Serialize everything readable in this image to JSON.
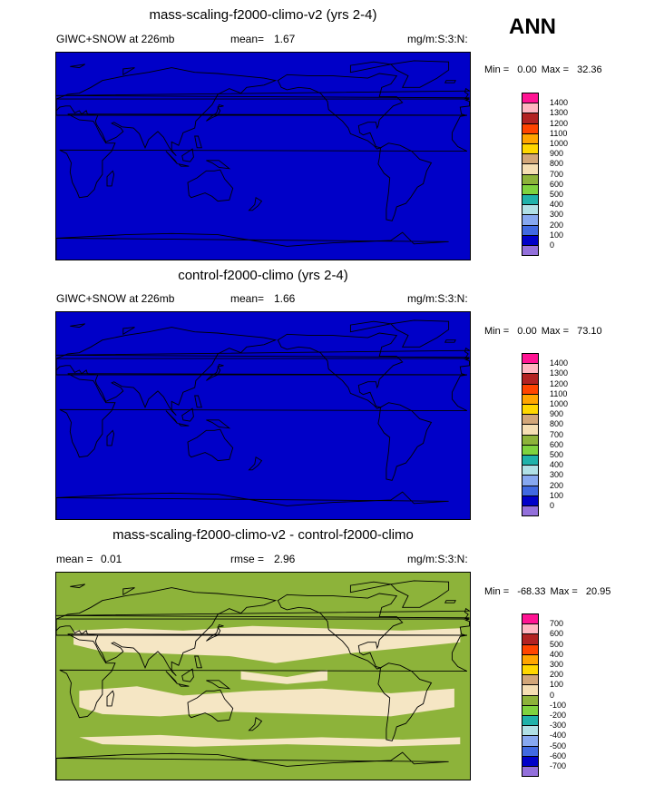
{
  "season_label": "ANN",
  "panels": [
    {
      "title": "mass-scaling-f2000-climo-v2 (yrs 2-4)",
      "left_label": "GIWC+SNOW at 226mb",
      "mean_label": "mean=",
      "mean_value": "1.67",
      "units": "mg/m:S:3:N:",
      "min_label": "Min =",
      "min_value": "0.00",
      "max_label": "Max =",
      "max_value": "32.36",
      "fill_color": "#0000c8",
      "colorbar": {
        "labels": [
          "1400",
          "1300",
          "1200",
          "1100",
          "1000",
          "900",
          "800",
          "700",
          "600",
          "500",
          "400",
          "300",
          "200",
          "100",
          "0"
        ],
        "colors": [
          "#ff1493",
          "#ffb6c1",
          "#b22222",
          "#ff4500",
          "#ffa500",
          "#ffd700",
          "#d2a679",
          "#f5deb3",
          "#8db33a",
          "#7fd33f",
          "#20b2aa",
          "#b0e0e6",
          "#87a8f0",
          "#4169e1",
          "#0000c8",
          "#9370db"
        ]
      }
    },
    {
      "title": "control-f2000-climo (yrs 2-4)",
      "left_label": "GIWC+SNOW at 226mb",
      "mean_label": "mean=",
      "mean_value": "1.66",
      "units": "mg/m:S:3:N:",
      "min_label": "Min =",
      "min_value": "0.00",
      "max_label": "Max =",
      "max_value": "73.10",
      "fill_color": "#0000c8",
      "colorbar": {
        "labels": [
          "1400",
          "1300",
          "1200",
          "1100",
          "1000",
          "900",
          "800",
          "700",
          "600",
          "500",
          "400",
          "300",
          "200",
          "100",
          "0"
        ],
        "colors": [
          "#ff1493",
          "#ffb6c1",
          "#b22222",
          "#ff4500",
          "#ffa500",
          "#ffd700",
          "#d2a679",
          "#f5deb3",
          "#8db33a",
          "#7fd33f",
          "#20b2aa",
          "#b0e0e6",
          "#87a8f0",
          "#4169e1",
          "#0000c8",
          "#9370db"
        ]
      }
    },
    {
      "title": "mass-scaling-f2000-climo-v2 - control-f2000-climo",
      "left_label": "mean =",
      "left_value": "0.01",
      "mean_label": "rmse =",
      "mean_value": "2.96",
      "units": "mg/m:S:3:N:",
      "min_label": "Min =",
      "min_value": "-68.33",
      "max_label": "Max =",
      "max_value": "20.95",
      "fill_color": "#8db33a",
      "patch_color": "#f5e6c4",
      "colorbar": {
        "labels": [
          "700",
          "600",
          "500",
          "400",
          "300",
          "200",
          "100",
          "0",
          "-100",
          "-200",
          "-300",
          "-400",
          "-500",
          "-600",
          "-700"
        ],
        "colors": [
          "#ff1493",
          "#ffb6c1",
          "#b22222",
          "#ff4500",
          "#ffa500",
          "#ffd700",
          "#d2a679",
          "#f5deb3",
          "#8db33a",
          "#7fd33f",
          "#20b2aa",
          "#b0e0e6",
          "#87a8f0",
          "#4169e1",
          "#0000c8",
          "#9370db"
        ]
      }
    }
  ],
  "chart_data": [
    {
      "type": "heatmap",
      "title": "mass-scaling-f2000-climo-v2 (yrs 2-4)",
      "mean": 1.67,
      "min": 0.0,
      "max": 32.36,
      "levels": [
        0,
        100,
        200,
        300,
        400,
        500,
        600,
        700,
        800,
        900,
        1000,
        1100,
        1200,
        1300,
        1400
      ]
    },
    {
      "type": "heatmap",
      "title": "control-f2000-climo (yrs 2-4)",
      "mean": 1.66,
      "min": 0.0,
      "max": 73.1,
      "levels": [
        0,
        100,
        200,
        300,
        400,
        500,
        600,
        700,
        800,
        900,
        1000,
        1100,
        1200,
        1300,
        1400
      ]
    },
    {
      "type": "heatmap",
      "title": "mass-scaling-f2000-climo-v2 - control-f2000-climo",
      "mean": 0.01,
      "rmse": 2.96,
      "min": -68.33,
      "max": 20.95,
      "levels": [
        -700,
        -600,
        -500,
        -400,
        -300,
        -200,
        -100,
        0,
        100,
        200,
        300,
        400,
        500,
        600,
        700
      ]
    }
  ]
}
